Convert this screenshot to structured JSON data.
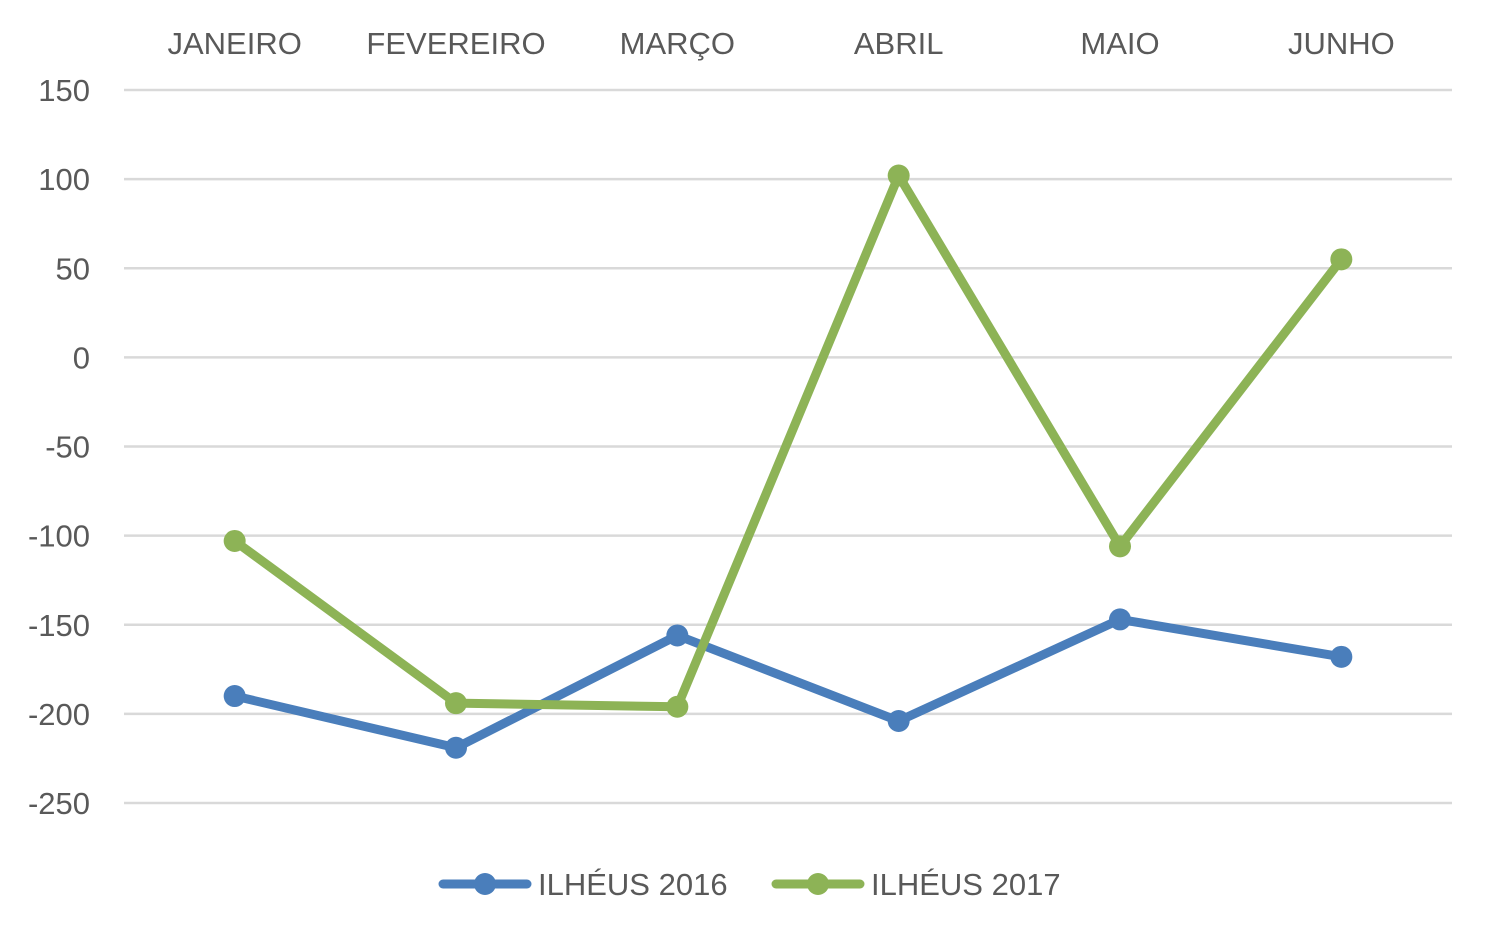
{
  "chart_data": {
    "type": "line",
    "title": "",
    "xlabel": "",
    "ylabel": "",
    "categories": [
      "JANEIRO",
      "FEVEREIRO",
      "MARÇO",
      "ABRIL",
      "MAIO",
      "JUNHO"
    ],
    "ylim": [
      -250,
      150
    ],
    "yticks": [
      150,
      100,
      50,
      0,
      -50,
      -100,
      -150,
      -200,
      -250
    ],
    "grid": true,
    "legend_position": "bottom",
    "category_axis_position": "top",
    "series": [
      {
        "name": "ILHÉUS 2016",
        "color": "#4a7ebb",
        "values": [
          -190,
          -219,
          -156,
          -204,
          -147,
          -168
        ]
      },
      {
        "name": "ILHÉUS 2017",
        "color": "#8db356",
        "values": [
          -103,
          -194,
          -196,
          102,
          -106,
          55
        ]
      }
    ]
  }
}
